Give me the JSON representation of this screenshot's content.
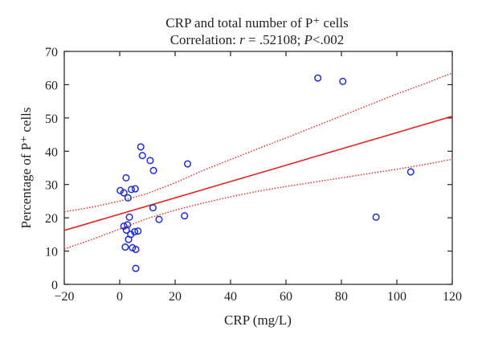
{
  "chart_data": {
    "type": "scatter",
    "title": "CRP and total number of P⁺ cells",
    "subtitle": "Correlation: r = .52108; P<.002",
    "subtitle_parts": [
      "Correlation: ",
      "r",
      " = .52108; ",
      "P",
      "<.002"
    ],
    "xlabel": "CRP (mg/L)",
    "ylabel": "Percentage of P⁺ cells",
    "xlim": [
      -20,
      120
    ],
    "ylim": [
      0,
      70
    ],
    "xticks": [
      -20,
      0,
      20,
      40,
      60,
      80,
      100,
      120
    ],
    "yticks": [
      0,
      10,
      20,
      30,
      40,
      50,
      60,
      70
    ],
    "grid": false,
    "points": [
      {
        "x": 0.2,
        "y": 28.2
      },
      {
        "x": 1.5,
        "y": 27.5
      },
      {
        "x": 2.3,
        "y": 32.0
      },
      {
        "x": 3.0,
        "y": 26.0
      },
      {
        "x": 4.2,
        "y": 28.5
      },
      {
        "x": 5.6,
        "y": 28.7
      },
      {
        "x": 7.6,
        "y": 41.3
      },
      {
        "x": 8.2,
        "y": 38.7
      },
      {
        "x": 11.0,
        "y": 37.2
      },
      {
        "x": 12.2,
        "y": 34.2
      },
      {
        "x": 24.5,
        "y": 36.2
      },
      {
        "x": 12.0,
        "y": 23.0
      },
      {
        "x": 14.2,
        "y": 19.5
      },
      {
        "x": 23.4,
        "y": 20.6
      },
      {
        "x": 3.5,
        "y": 20.2
      },
      {
        "x": 1.5,
        "y": 17.5
      },
      {
        "x": 2.8,
        "y": 17.9
      },
      {
        "x": 2.4,
        "y": 16.3
      },
      {
        "x": 5.4,
        "y": 15.8
      },
      {
        "x": 6.6,
        "y": 16.0
      },
      {
        "x": 4.0,
        "y": 15.0
      },
      {
        "x": 3.2,
        "y": 13.5
      },
      {
        "x": 4.6,
        "y": 11.0
      },
      {
        "x": 5.8,
        "y": 10.5
      },
      {
        "x": 2.0,
        "y": 11.2
      },
      {
        "x": 5.8,
        "y": 4.8
      },
      {
        "x": 71.5,
        "y": 62.0
      },
      {
        "x": 80.5,
        "y": 61.0
      },
      {
        "x": 92.5,
        "y": 20.2
      },
      {
        "x": 105.0,
        "y": 33.8
      }
    ],
    "regression_line": {
      "color": "#e8201c",
      "x": [
        -20,
        120
      ],
      "y": [
        16.2,
        50.5
      ]
    },
    "confidence_band": {
      "color": "#e8201c",
      "style": "dotted",
      "x": [
        -20,
        -10,
        0,
        10,
        20,
        30,
        40,
        50,
        60,
        70,
        80,
        90,
        100,
        110,
        120
      ],
      "upper": [
        21.8,
        23.2,
        25.0,
        27.3,
        30.5,
        34.2,
        37.5,
        40.8,
        44.0,
        47.3,
        50.6,
        53.9,
        57.2,
        60.3,
        63.5
      ],
      "lower": [
        10.6,
        13.5,
        16.6,
        19.8,
        22.3,
        24.4,
        26.3,
        28.0,
        29.4,
        30.7,
        32.0,
        33.3,
        34.6,
        36.0,
        37.6
      ]
    },
    "marker_color": "#1f2bd6",
    "axis_color": "#222222"
  }
}
